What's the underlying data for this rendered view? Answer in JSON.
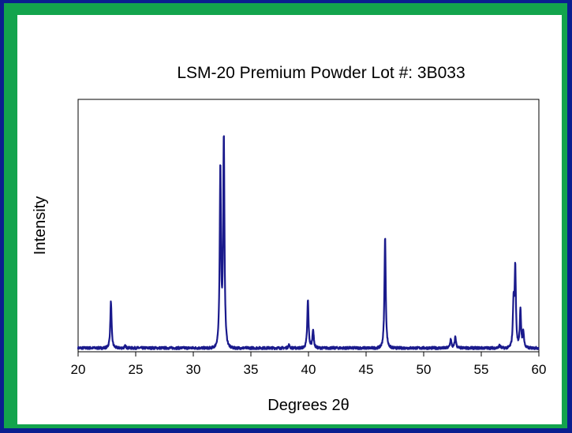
{
  "chart_data": {
    "type": "line",
    "title": "LSM-20 Premium Powder  Lot #: 3B033",
    "xlabel": "Degrees 2θ",
    "ylabel": "Intensity",
    "xlim": [
      20,
      60
    ],
    "ylim": [
      0,
      100
    ],
    "x_ticks": [
      20,
      25,
      30,
      35,
      40,
      45,
      50,
      55,
      60
    ],
    "grid": false,
    "legend": "none",
    "line_color": "#1a1a8c",
    "baseline": 1.5,
    "peaks": [
      {
        "x": 22.85,
        "y": 18.5
      },
      {
        "x": 24.1,
        "y": 0.8
      },
      {
        "x": 32.35,
        "y": 71
      },
      {
        "x": 32.65,
        "y": 83
      },
      {
        "x": 38.3,
        "y": 1.2
      },
      {
        "x": 39.95,
        "y": 19
      },
      {
        "x": 40.4,
        "y": 7.5
      },
      {
        "x": 46.65,
        "y": 44
      },
      {
        "x": 52.35,
        "y": 3.5
      },
      {
        "x": 52.75,
        "y": 4.5
      },
      {
        "x": 56.6,
        "y": 1.2
      },
      {
        "x": 57.8,
        "y": 17
      },
      {
        "x": 57.95,
        "y": 31
      },
      {
        "x": 58.4,
        "y": 15
      },
      {
        "x": 58.65,
        "y": 6.5
      }
    ]
  }
}
